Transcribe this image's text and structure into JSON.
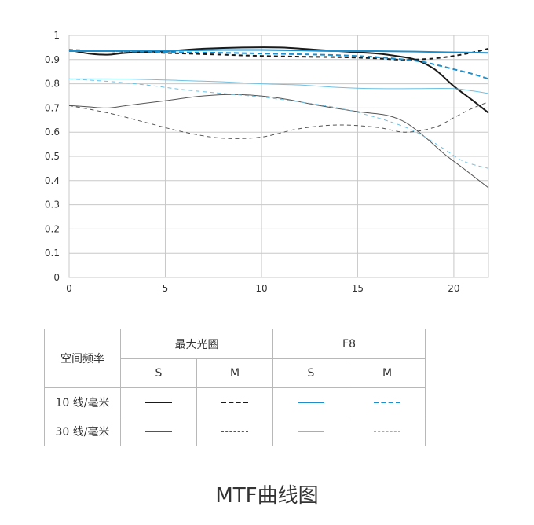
{
  "chart_data": {
    "type": "line",
    "xlim": [
      0,
      21.8
    ],
    "ylim": [
      0,
      1
    ],
    "x_ticks": [
      "0",
      "5",
      "10",
      "15",
      "20"
    ],
    "y_ticks": [
      "0",
      "0.1",
      "0.2",
      "0.3",
      "0.4",
      "0.5",
      "0.6",
      "0.7",
      "0.8",
      "0.9",
      "1"
    ],
    "grid": true,
    "series": [
      {
        "name": "10 线/毫米 最大光圈 S",
        "color": "#1a1a1a",
        "dash": "solid",
        "width": 2,
        "points": [
          [
            0,
            0.94
          ],
          [
            1,
            0.925
          ],
          [
            2,
            0.92
          ],
          [
            3,
            0.928
          ],
          [
            5,
            0.935
          ],
          [
            7,
            0.945
          ],
          [
            9,
            0.95
          ],
          [
            11,
            0.95
          ],
          [
            13,
            0.94
          ],
          [
            15,
            0.93
          ],
          [
            16,
            0.925
          ],
          [
            17,
            0.915
          ],
          [
            18,
            0.9
          ],
          [
            19,
            0.86
          ],
          [
            20,
            0.79
          ],
          [
            21,
            0.73
          ],
          [
            21.8,
            0.68
          ]
        ]
      },
      {
        "name": "10 线/毫米 最大光圈 M",
        "color": "#1a1a1a",
        "dash": "5,4",
        "width": 2,
        "points": [
          [
            0,
            0.94
          ],
          [
            2,
            0.935
          ],
          [
            4,
            0.93
          ],
          [
            6,
            0.925
          ],
          [
            8,
            0.92
          ],
          [
            10,
            0.915
          ],
          [
            12,
            0.912
          ],
          [
            14,
            0.91
          ],
          [
            16,
            0.905
          ],
          [
            17,
            0.9
          ],
          [
            18,
            0.9
          ],
          [
            19,
            0.905
          ],
          [
            20,
            0.915
          ],
          [
            21,
            0.93
          ],
          [
            21.8,
            0.945
          ]
        ]
      },
      {
        "name": "10 线/毫米 F8 S",
        "color": "#1c8ec9",
        "dash": "solid",
        "width": 2,
        "points": [
          [
            0,
            0.935
          ],
          [
            2,
            0.935
          ],
          [
            4,
            0.937
          ],
          [
            6,
            0.938
          ],
          [
            8,
            0.94
          ],
          [
            10,
            0.94
          ],
          [
            12,
            0.938
          ],
          [
            14,
            0.935
          ],
          [
            16,
            0.935
          ],
          [
            18,
            0.933
          ],
          [
            20,
            0.93
          ],
          [
            21.8,
            0.928
          ]
        ]
      },
      {
        "name": "10 线/毫米 F8 M",
        "color": "#1c8ec9",
        "dash": "6,4",
        "width": 2,
        "points": [
          [
            0,
            0.935
          ],
          [
            2,
            0.935
          ],
          [
            4,
            0.933
          ],
          [
            6,
            0.93
          ],
          [
            8,
            0.928
          ],
          [
            10,
            0.925
          ],
          [
            12,
            0.922
          ],
          [
            14,
            0.918
          ],
          [
            16,
            0.91
          ],
          [
            18,
            0.895
          ],
          [
            19,
            0.88
          ],
          [
            20,
            0.86
          ],
          [
            21,
            0.84
          ],
          [
            21.8,
            0.82
          ]
        ]
      },
      {
        "name": "30 线/毫米 最大光圈 S",
        "color": "#555555",
        "dash": "solid",
        "width": 1,
        "points": [
          [
            0,
            0.71
          ],
          [
            1,
            0.705
          ],
          [
            2,
            0.7
          ],
          [
            3,
            0.71
          ],
          [
            5,
            0.73
          ],
          [
            7,
            0.75
          ],
          [
            9,
            0.755
          ],
          [
            11,
            0.74
          ],
          [
            13,
            0.71
          ],
          [
            15,
            0.685
          ],
          [
            16.5,
            0.67
          ],
          [
            17.5,
            0.64
          ],
          [
            18.5,
            0.58
          ],
          [
            19.5,
            0.51
          ],
          [
            20.5,
            0.45
          ],
          [
            21.8,
            0.37
          ]
        ]
      },
      {
        "name": "30 线/毫米 最大光圈 M",
        "color": "#555555",
        "dash": "5,4",
        "width": 1,
        "points": [
          [
            0,
            0.71
          ],
          [
            2,
            0.68
          ],
          [
            4,
            0.64
          ],
          [
            6,
            0.6
          ],
          [
            8,
            0.575
          ],
          [
            10,
            0.58
          ],
          [
            12,
            0.615
          ],
          [
            14,
            0.63
          ],
          [
            16,
            0.62
          ],
          [
            17.5,
            0.6
          ],
          [
            19,
            0.62
          ],
          [
            20,
            0.66
          ],
          [
            21,
            0.7
          ],
          [
            21.8,
            0.725
          ]
        ]
      },
      {
        "name": "30 线/毫米 F8 S",
        "color": "#6dc1e3",
        "dash": "solid",
        "width": 1,
        "points": [
          [
            0,
            0.82
          ],
          [
            2,
            0.82
          ],
          [
            4,
            0.818
          ],
          [
            6,
            0.813
          ],
          [
            8,
            0.808
          ],
          [
            10,
            0.8
          ],
          [
            12,
            0.795
          ],
          [
            14,
            0.785
          ],
          [
            16,
            0.78
          ],
          [
            18,
            0.78
          ],
          [
            20,
            0.78
          ],
          [
            21,
            0.77
          ],
          [
            21.8,
            0.76
          ]
        ]
      },
      {
        "name": "30 线/毫米 F8 M",
        "color": "#6dc1e3",
        "dash": "5,4",
        "width": 1,
        "points": [
          [
            0,
            0.82
          ],
          [
            2,
            0.81
          ],
          [
            4,
            0.795
          ],
          [
            6,
            0.775
          ],
          [
            8,
            0.76
          ],
          [
            10,
            0.745
          ],
          [
            12,
            0.725
          ],
          [
            14,
            0.7
          ],
          [
            16,
            0.66
          ],
          [
            17.5,
            0.62
          ],
          [
            18.5,
            0.58
          ],
          [
            19.5,
            0.53
          ],
          [
            20.5,
            0.48
          ],
          [
            21.8,
            0.45
          ]
        ]
      }
    ]
  },
  "legend": {
    "header_freq": "空间频率",
    "group_max": "最大光圈",
    "group_f8": "F8",
    "sub_s1": "S",
    "sub_m1": "M",
    "sub_s2": "S",
    "sub_m2": "M",
    "row10": "10 线/毫米",
    "row30": "30 线/毫米",
    "colors": {
      "black": "#1a1a1a",
      "gray": "#555555",
      "blue": "#1c8ec9",
      "lightblue": "#6dc1e3"
    }
  },
  "caption": "MTF曲线图"
}
